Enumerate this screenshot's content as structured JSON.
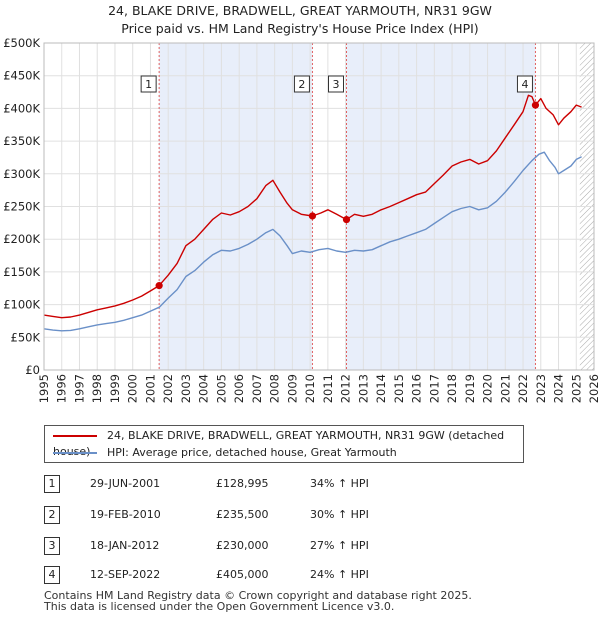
{
  "title_line1": "24, BLAKE DRIVE, BRADWELL, GREAT YARMOUTH, NR31 9GW",
  "title_line2": "Price paid vs. HM Land Registry's House Price Index (HPI)",
  "colors": {
    "property": "#cc0000",
    "hpi": "#6a90c8",
    "shade": "#e8eefa",
    "vline": "#e06060",
    "grid": "#e0e0e0"
  },
  "chart_data": {
    "type": "line",
    "xlim": [
      1995,
      2026
    ],
    "ylim": [
      0,
      500000
    ],
    "xticks": [
      "1995",
      "1996",
      "1997",
      "1998",
      "1999",
      "2000",
      "2001",
      "2002",
      "2003",
      "2004",
      "2005",
      "2006",
      "2007",
      "2008",
      "2009",
      "2010",
      "2011",
      "2012",
      "2013",
      "2014",
      "2015",
      "2016",
      "2017",
      "2018",
      "2019",
      "2020",
      "2021",
      "2022",
      "2023",
      "2024",
      "2025",
      "2026"
    ],
    "yticks": [
      {
        "value": 0,
        "label": "£0"
      },
      {
        "value": 50000,
        "label": "£50K"
      },
      {
        "value": 100000,
        "label": "£100K"
      },
      {
        "value": 150000,
        "label": "£150K"
      },
      {
        "value": 200000,
        "label": "£200K"
      },
      {
        "value": 250000,
        "label": "£250K"
      },
      {
        "value": 300000,
        "label": "£300K"
      },
      {
        "value": 350000,
        "label": "£350K"
      },
      {
        "value": 400000,
        "label": "£400K"
      },
      {
        "value": 450000,
        "label": "£450K"
      },
      {
        "value": 500000,
        "label": "£500K"
      }
    ],
    "shaded_ranges": [
      [
        2001.49,
        2010.13
      ],
      [
        2012.05,
        2022.7
      ]
    ],
    "hatch_from": 2025.2,
    "series": [
      {
        "name": "24, BLAKE DRIVE, BRADWELL, GREAT YARMOUTH, NR31 9GW (detached house)",
        "color": "#cc0000",
        "points": [
          [
            1995.0,
            84000
          ],
          [
            1995.5,
            82000
          ],
          [
            1996.0,
            80000
          ],
          [
            1996.5,
            81000
          ],
          [
            1997.0,
            84000
          ],
          [
            1997.5,
            88000
          ],
          [
            1998.0,
            92000
          ],
          [
            1998.5,
            95000
          ],
          [
            1999.0,
            98000
          ],
          [
            1999.5,
            102000
          ],
          [
            2000.0,
            107000
          ],
          [
            2000.5,
            113000
          ],
          [
            2001.0,
            121000
          ],
          [
            2001.49,
            128995
          ],
          [
            2002.0,
            145000
          ],
          [
            2002.5,
            163000
          ],
          [
            2003.0,
            190000
          ],
          [
            2003.5,
            200000
          ],
          [
            2004.0,
            215000
          ],
          [
            2004.5,
            230000
          ],
          [
            2005.0,
            240000
          ],
          [
            2005.5,
            237000
          ],
          [
            2006.0,
            242000
          ],
          [
            2006.5,
            250000
          ],
          [
            2007.0,
            262000
          ],
          [
            2007.5,
            282000
          ],
          [
            2007.9,
            290000
          ],
          [
            2008.3,
            272000
          ],
          [
            2008.7,
            255000
          ],
          [
            2009.0,
            245000
          ],
          [
            2009.5,
            238000
          ],
          [
            2010.13,
            235500
          ],
          [
            2010.6,
            240000
          ],
          [
            2011.0,
            245000
          ],
          [
            2011.5,
            238000
          ],
          [
            2012.05,
            230000
          ],
          [
            2012.5,
            238000
          ],
          [
            2013.0,
            235000
          ],
          [
            2013.5,
            238000
          ],
          [
            2014.0,
            245000
          ],
          [
            2014.5,
            250000
          ],
          [
            2015.0,
            256000
          ],
          [
            2015.5,
            262000
          ],
          [
            2016.0,
            268000
          ],
          [
            2016.5,
            272000
          ],
          [
            2017.0,
            285000
          ],
          [
            2017.5,
            298000
          ],
          [
            2018.0,
            312000
          ],
          [
            2018.5,
            318000
          ],
          [
            2019.0,
            322000
          ],
          [
            2019.5,
            315000
          ],
          [
            2020.0,
            320000
          ],
          [
            2020.5,
            335000
          ],
          [
            2021.0,
            355000
          ],
          [
            2021.5,
            375000
          ],
          [
            2022.0,
            395000
          ],
          [
            2022.3,
            420000
          ],
          [
            2022.5,
            418000
          ],
          [
            2022.7,
            405000
          ],
          [
            2023.0,
            415000
          ],
          [
            2023.3,
            400000
          ],
          [
            2023.7,
            390000
          ],
          [
            2024.0,
            375000
          ],
          [
            2024.3,
            385000
          ],
          [
            2024.7,
            395000
          ],
          [
            2025.0,
            405000
          ],
          [
            2025.3,
            402000
          ]
        ]
      },
      {
        "name": "HPI: Average price, detached house, Great Yarmouth",
        "color": "#6a90c8",
        "points": [
          [
            1995.0,
            63000
          ],
          [
            1995.5,
            61000
          ],
          [
            1996.0,
            60000
          ],
          [
            1996.5,
            60500
          ],
          [
            1997.0,
            63000
          ],
          [
            1997.5,
            66000
          ],
          [
            1998.0,
            69000
          ],
          [
            1998.5,
            71000
          ],
          [
            1999.0,
            73000
          ],
          [
            1999.5,
            76000
          ],
          [
            2000.0,
            80000
          ],
          [
            2000.5,
            84000
          ],
          [
            2001.0,
            90000
          ],
          [
            2001.5,
            96000
          ],
          [
            2002.0,
            110000
          ],
          [
            2002.5,
            123000
          ],
          [
            2003.0,
            143000
          ],
          [
            2003.5,
            152000
          ],
          [
            2004.0,
            165000
          ],
          [
            2004.5,
            176000
          ],
          [
            2005.0,
            183000
          ],
          [
            2005.5,
            182000
          ],
          [
            2006.0,
            186000
          ],
          [
            2006.5,
            192000
          ],
          [
            2007.0,
            200000
          ],
          [
            2007.5,
            210000
          ],
          [
            2007.9,
            215000
          ],
          [
            2008.3,
            205000
          ],
          [
            2008.7,
            190000
          ],
          [
            2009.0,
            178000
          ],
          [
            2009.5,
            182000
          ],
          [
            2010.0,
            180000
          ],
          [
            2010.5,
            184000
          ],
          [
            2011.0,
            186000
          ],
          [
            2011.5,
            182000
          ],
          [
            2012.0,
            180000
          ],
          [
            2012.5,
            183000
          ],
          [
            2013.0,
            182000
          ],
          [
            2013.5,
            184000
          ],
          [
            2014.0,
            190000
          ],
          [
            2014.5,
            196000
          ],
          [
            2015.0,
            200000
          ],
          [
            2015.5,
            205000
          ],
          [
            2016.0,
            210000
          ],
          [
            2016.5,
            215000
          ],
          [
            2017.0,
            224000
          ],
          [
            2017.5,
            233000
          ],
          [
            2018.0,
            242000
          ],
          [
            2018.5,
            247000
          ],
          [
            2019.0,
            250000
          ],
          [
            2019.5,
            245000
          ],
          [
            2020.0,
            248000
          ],
          [
            2020.5,
            258000
          ],
          [
            2021.0,
            272000
          ],
          [
            2021.5,
            288000
          ],
          [
            2022.0,
            305000
          ],
          [
            2022.5,
            320000
          ],
          [
            2022.9,
            330000
          ],
          [
            2023.2,
            333000
          ],
          [
            2023.5,
            320000
          ],
          [
            2023.8,
            310000
          ],
          [
            2024.0,
            300000
          ],
          [
            2024.3,
            305000
          ],
          [
            2024.7,
            312000
          ],
          [
            2025.0,
            322000
          ],
          [
            2025.3,
            326000
          ]
        ]
      }
    ],
    "sales": [
      {
        "id": "1",
        "x": 2001.49,
        "price": 128995
      },
      {
        "id": "2",
        "x": 2010.13,
        "price": 235500
      },
      {
        "id": "3",
        "x": 2012.05,
        "price": 230000
      },
      {
        "id": "4",
        "x": 2022.7,
        "price": 405000
      }
    ]
  },
  "legend": [
    {
      "label": "24, BLAKE DRIVE, BRADWELL, GREAT YARMOUTH, NR31 9GW (detached house)",
      "color": "#cc0000"
    },
    {
      "label": "HPI: Average price, detached house, Great Yarmouth",
      "color": "#6a90c8"
    }
  ],
  "sales_table": [
    {
      "id": "1",
      "date": "29-JUN-2001",
      "price": "£128,995",
      "hpi": "34% ↑ HPI"
    },
    {
      "id": "2",
      "date": "19-FEB-2010",
      "price": "£235,500",
      "hpi": "30% ↑ HPI"
    },
    {
      "id": "3",
      "date": "18-JAN-2012",
      "price": "£230,000",
      "hpi": "27% ↑ HPI"
    },
    {
      "id": "4",
      "date": "12-SEP-2022",
      "price": "£405,000",
      "hpi": "24% ↑ HPI"
    }
  ],
  "footer_line1": "Contains HM Land Registry data © Crown copyright and database right 2025.",
  "footer_line2": "This data is licensed under the Open Government Licence v3.0."
}
